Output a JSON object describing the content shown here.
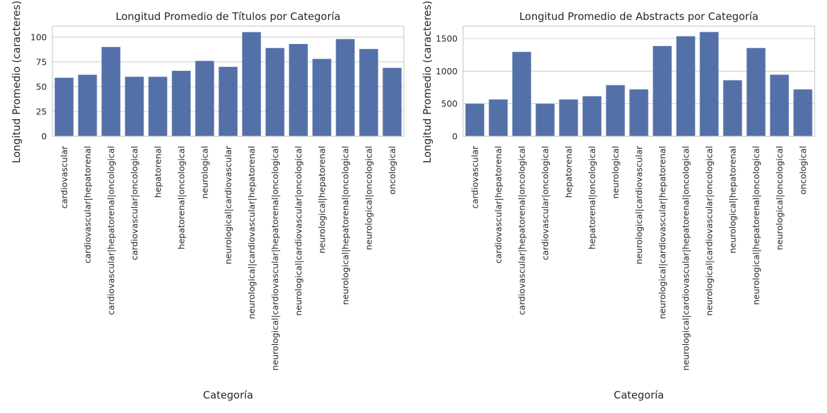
{
  "chart_data": [
    {
      "type": "bar",
      "title": "Longitud Promedio de Títulos por Categoría",
      "xlabel": "Categoría",
      "ylabel": "Longitud Promedio (caracteres)",
      "ylim": [
        0,
        111
      ],
      "yticks": [
        0,
        25,
        50,
        75,
        100
      ],
      "grid": true,
      "bar_color": "#5470a8",
      "categories": [
        "cardiovascular",
        "cardiovascular|hepatorenal",
        "cardiovascular|hepatorenal|oncological",
        "cardiovascular|oncological",
        "hepatorenal",
        "hepatorenal|oncological",
        "neurological",
        "neurological|cardiovascular",
        "neurological|cardiovascular|hepatorenal",
        "neurological|cardiovascular|hepatorenal|oncological",
        "neurological|cardiovascular|oncological",
        "neurological|hepatorenal",
        "neurological|hepatorenal|oncological",
        "neurological|oncological",
        "oncological"
      ],
      "values": [
        59,
        62,
        90,
        60,
        60,
        66,
        76,
        70,
        105,
        89,
        93,
        78,
        98,
        88,
        69
      ]
    },
    {
      "type": "bar",
      "title": "Longitud Promedio de Abstracts por Categoría",
      "xlabel": "Categoría",
      "ylabel": "Longitud Promedio (caracteres)",
      "ylim": [
        0,
        1690
      ],
      "yticks": [
        0,
        500,
        1000,
        1500
      ],
      "grid": true,
      "bar_color": "#5470a8",
      "categories": [
        "cardiovascular",
        "cardiovascular|hepatorenal",
        "cardiovascular|hepatorenal|oncological",
        "cardiovascular|oncological",
        "hepatorenal",
        "hepatorenal|oncological",
        "neurological",
        "neurological|cardiovascular",
        "neurological|cardiovascular|hepatorenal",
        "neurological|cardiovascular|hepatorenal|oncological",
        "neurological|cardiovascular|oncological",
        "neurological|hepatorenal",
        "neurological|hepatorenal|oncological",
        "neurological|oncological",
        "oncological"
      ],
      "values": [
        500,
        565,
        1295,
        500,
        565,
        615,
        785,
        720,
        1385,
        1535,
        1600,
        860,
        1355,
        945,
        720
      ]
    }
  ]
}
